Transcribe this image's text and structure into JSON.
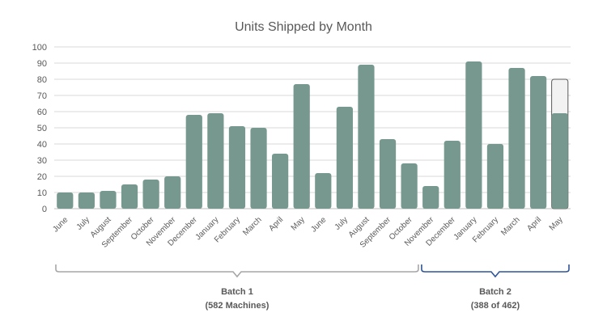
{
  "chart_data": {
    "type": "bar",
    "title": "Units Shipped by Month",
    "xlabel": "",
    "ylabel": "",
    "ylim": [
      0,
      100
    ],
    "yticks": [
      0,
      10,
      20,
      30,
      40,
      50,
      60,
      70,
      80,
      90,
      100
    ],
    "grid": true,
    "categories": [
      "June",
      "July",
      "August",
      "September",
      "October",
      "November",
      "December",
      "January",
      "February",
      "March",
      "April",
      "May",
      "June",
      "July",
      "August",
      "September",
      "October",
      "November",
      "December",
      "January",
      "February",
      "March",
      "April",
      "May"
    ],
    "values": [
      10,
      10,
      11,
      15,
      18,
      20,
      58,
      59,
      51,
      50,
      34,
      77,
      22,
      63,
      89,
      43,
      28,
      14,
      42,
      91,
      40,
      87,
      82,
      59
    ],
    "target_last": 80,
    "groups": [
      {
        "label": "Batch 1",
        "sublabel": "(582 Machines)",
        "start": 0,
        "end": 16,
        "color": "#a6a6a6"
      },
      {
        "label": "Batch 2",
        "sublabel": "(388 of 462)",
        "start": 17,
        "end": 23,
        "color": "#2f5597"
      }
    ],
    "colors": {
      "bar": "#76988e",
      "target_fill": "#f2f2f2",
      "target_stroke": "#595959"
    }
  }
}
